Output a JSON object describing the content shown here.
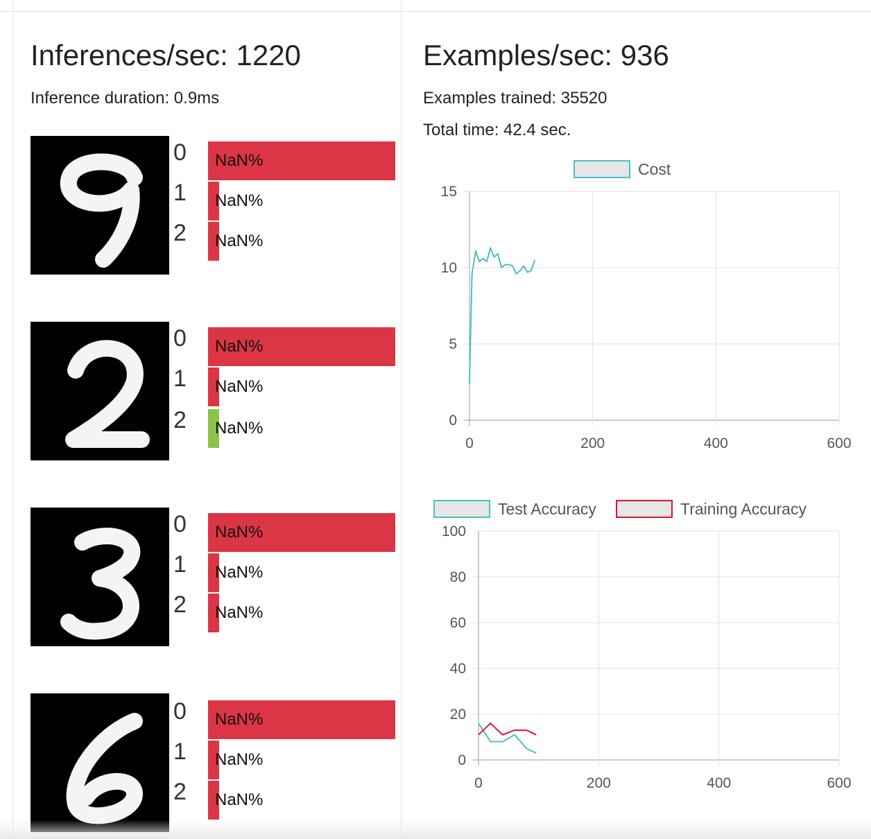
{
  "inference": {
    "title": "Inferences/sec: 1220",
    "duration": "Inference duration: 0.9ms"
  },
  "training": {
    "title": "Examples/sec: 936",
    "examples": "Examples trained: 35520",
    "total_time": "Total time: 42.4 sec."
  },
  "colors": {
    "red": "#dc3545",
    "green": "#8bc34a",
    "teal": "#4bc0c0",
    "crimson": "#e0132d"
  },
  "samples": [
    {
      "digit": "9",
      "predictions": [
        {
          "label": "0",
          "text": "NaN%",
          "fill": 1.0,
          "color": "red"
        },
        {
          "label": "1",
          "text": "NaN%",
          "fill": 0.06,
          "color": "red"
        },
        {
          "label": "2",
          "text": "NaN%",
          "fill": 0.06,
          "color": "red"
        }
      ]
    },
    {
      "digit": "2",
      "predictions": [
        {
          "label": "0",
          "text": "NaN%",
          "fill": 1.0,
          "color": "red"
        },
        {
          "label": "1",
          "text": "NaN%",
          "fill": 0.06,
          "color": "red"
        },
        {
          "label": "2",
          "text": "NaN%",
          "fill": 0.06,
          "color": "green"
        }
      ]
    },
    {
      "digit": "3",
      "predictions": [
        {
          "label": "0",
          "text": "NaN%",
          "fill": 1.0,
          "color": "red"
        },
        {
          "label": "1",
          "text": "NaN%",
          "fill": 0.06,
          "color": "red"
        },
        {
          "label": "2",
          "text": "NaN%",
          "fill": 0.06,
          "color": "red"
        }
      ]
    },
    {
      "digit": "6",
      "predictions": [
        {
          "label": "0",
          "text": "NaN%",
          "fill": 1.0,
          "color": "red"
        },
        {
          "label": "1",
          "text": "NaN%",
          "fill": 0.06,
          "color": "red"
        },
        {
          "label": "2",
          "text": "NaN%",
          "fill": 0.06,
          "color": "red"
        }
      ]
    }
  ],
  "chart_data": [
    {
      "type": "line",
      "title": "",
      "xlim": [
        0,
        600
      ],
      "ylim": [
        0,
        15
      ],
      "xticks": [
        0,
        200,
        400,
        600
      ],
      "yticks": [
        0,
        5,
        10,
        15
      ],
      "legend_position": "top-center",
      "series": [
        {
          "name": "Cost",
          "color": "#4bc0c0",
          "x": [
            0,
            4,
            10,
            16,
            22,
            28,
            34,
            40,
            46,
            52,
            58,
            64,
            70,
            76,
            82,
            88,
            94,
            100,
            106
          ],
          "y": [
            2.4,
            9.6,
            11.1,
            10.4,
            10.6,
            10.4,
            11.3,
            10.7,
            10.9,
            10.0,
            10.2,
            10.2,
            10.1,
            9.6,
            9.8,
            10.1,
            9.7,
            9.8,
            10.5
          ]
        }
      ]
    },
    {
      "type": "line",
      "title": "",
      "xlim": [
        0,
        600
      ],
      "ylim": [
        0,
        100
      ],
      "xticks": [
        0,
        200,
        400,
        600
      ],
      "yticks": [
        0,
        20,
        40,
        60,
        80,
        100
      ],
      "legend_position": "top-center",
      "series": [
        {
          "name": "Test Accuracy",
          "color": "#4bc0c0",
          "x": [
            0,
            20,
            40,
            60,
            80,
            96
          ],
          "y": [
            16,
            8,
            8,
            11,
            5,
            3
          ]
        },
        {
          "name": "Training Accuracy",
          "color": "#e0132d",
          "x": [
            0,
            20,
            40,
            60,
            80,
            96
          ],
          "y": [
            11,
            16,
            11,
            13,
            13,
            11
          ]
        }
      ]
    }
  ]
}
